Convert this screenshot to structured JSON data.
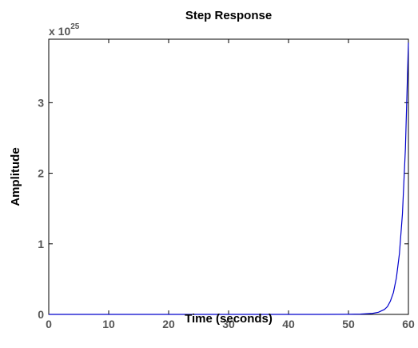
{
  "chart_data": {
    "type": "line",
    "title": "Step Response",
    "xlabel": "Time (seconds)",
    "ylabel": "Amplitude",
    "y_multiplier_label": "x 10",
    "y_multiplier_exponent": "25",
    "xlim": [
      0,
      60
    ],
    "ylim": [
      0,
      3.9
    ],
    "x_ticks": [
      "0",
      "10",
      "20",
      "30",
      "40",
      "50",
      "60"
    ],
    "y_ticks": [
      "0",
      "1",
      "2",
      "3"
    ],
    "grid": false,
    "line_color": "#0000cc",
    "series": [
      {
        "x": [
          0,
          10,
          20,
          30,
          40,
          45,
          50,
          52,
          54,
          55,
          56,
          56.5,
          57,
          57.5,
          58,
          58.5,
          59,
          59.5,
          60
        ],
        "y": [
          0,
          0,
          0,
          0,
          0,
          0,
          0.001,
          0.004,
          0.014,
          0.03,
          0.07,
          0.11,
          0.19,
          0.31,
          0.52,
          0.86,
          1.42,
          2.35,
          3.85
        ]
      }
    ]
  }
}
